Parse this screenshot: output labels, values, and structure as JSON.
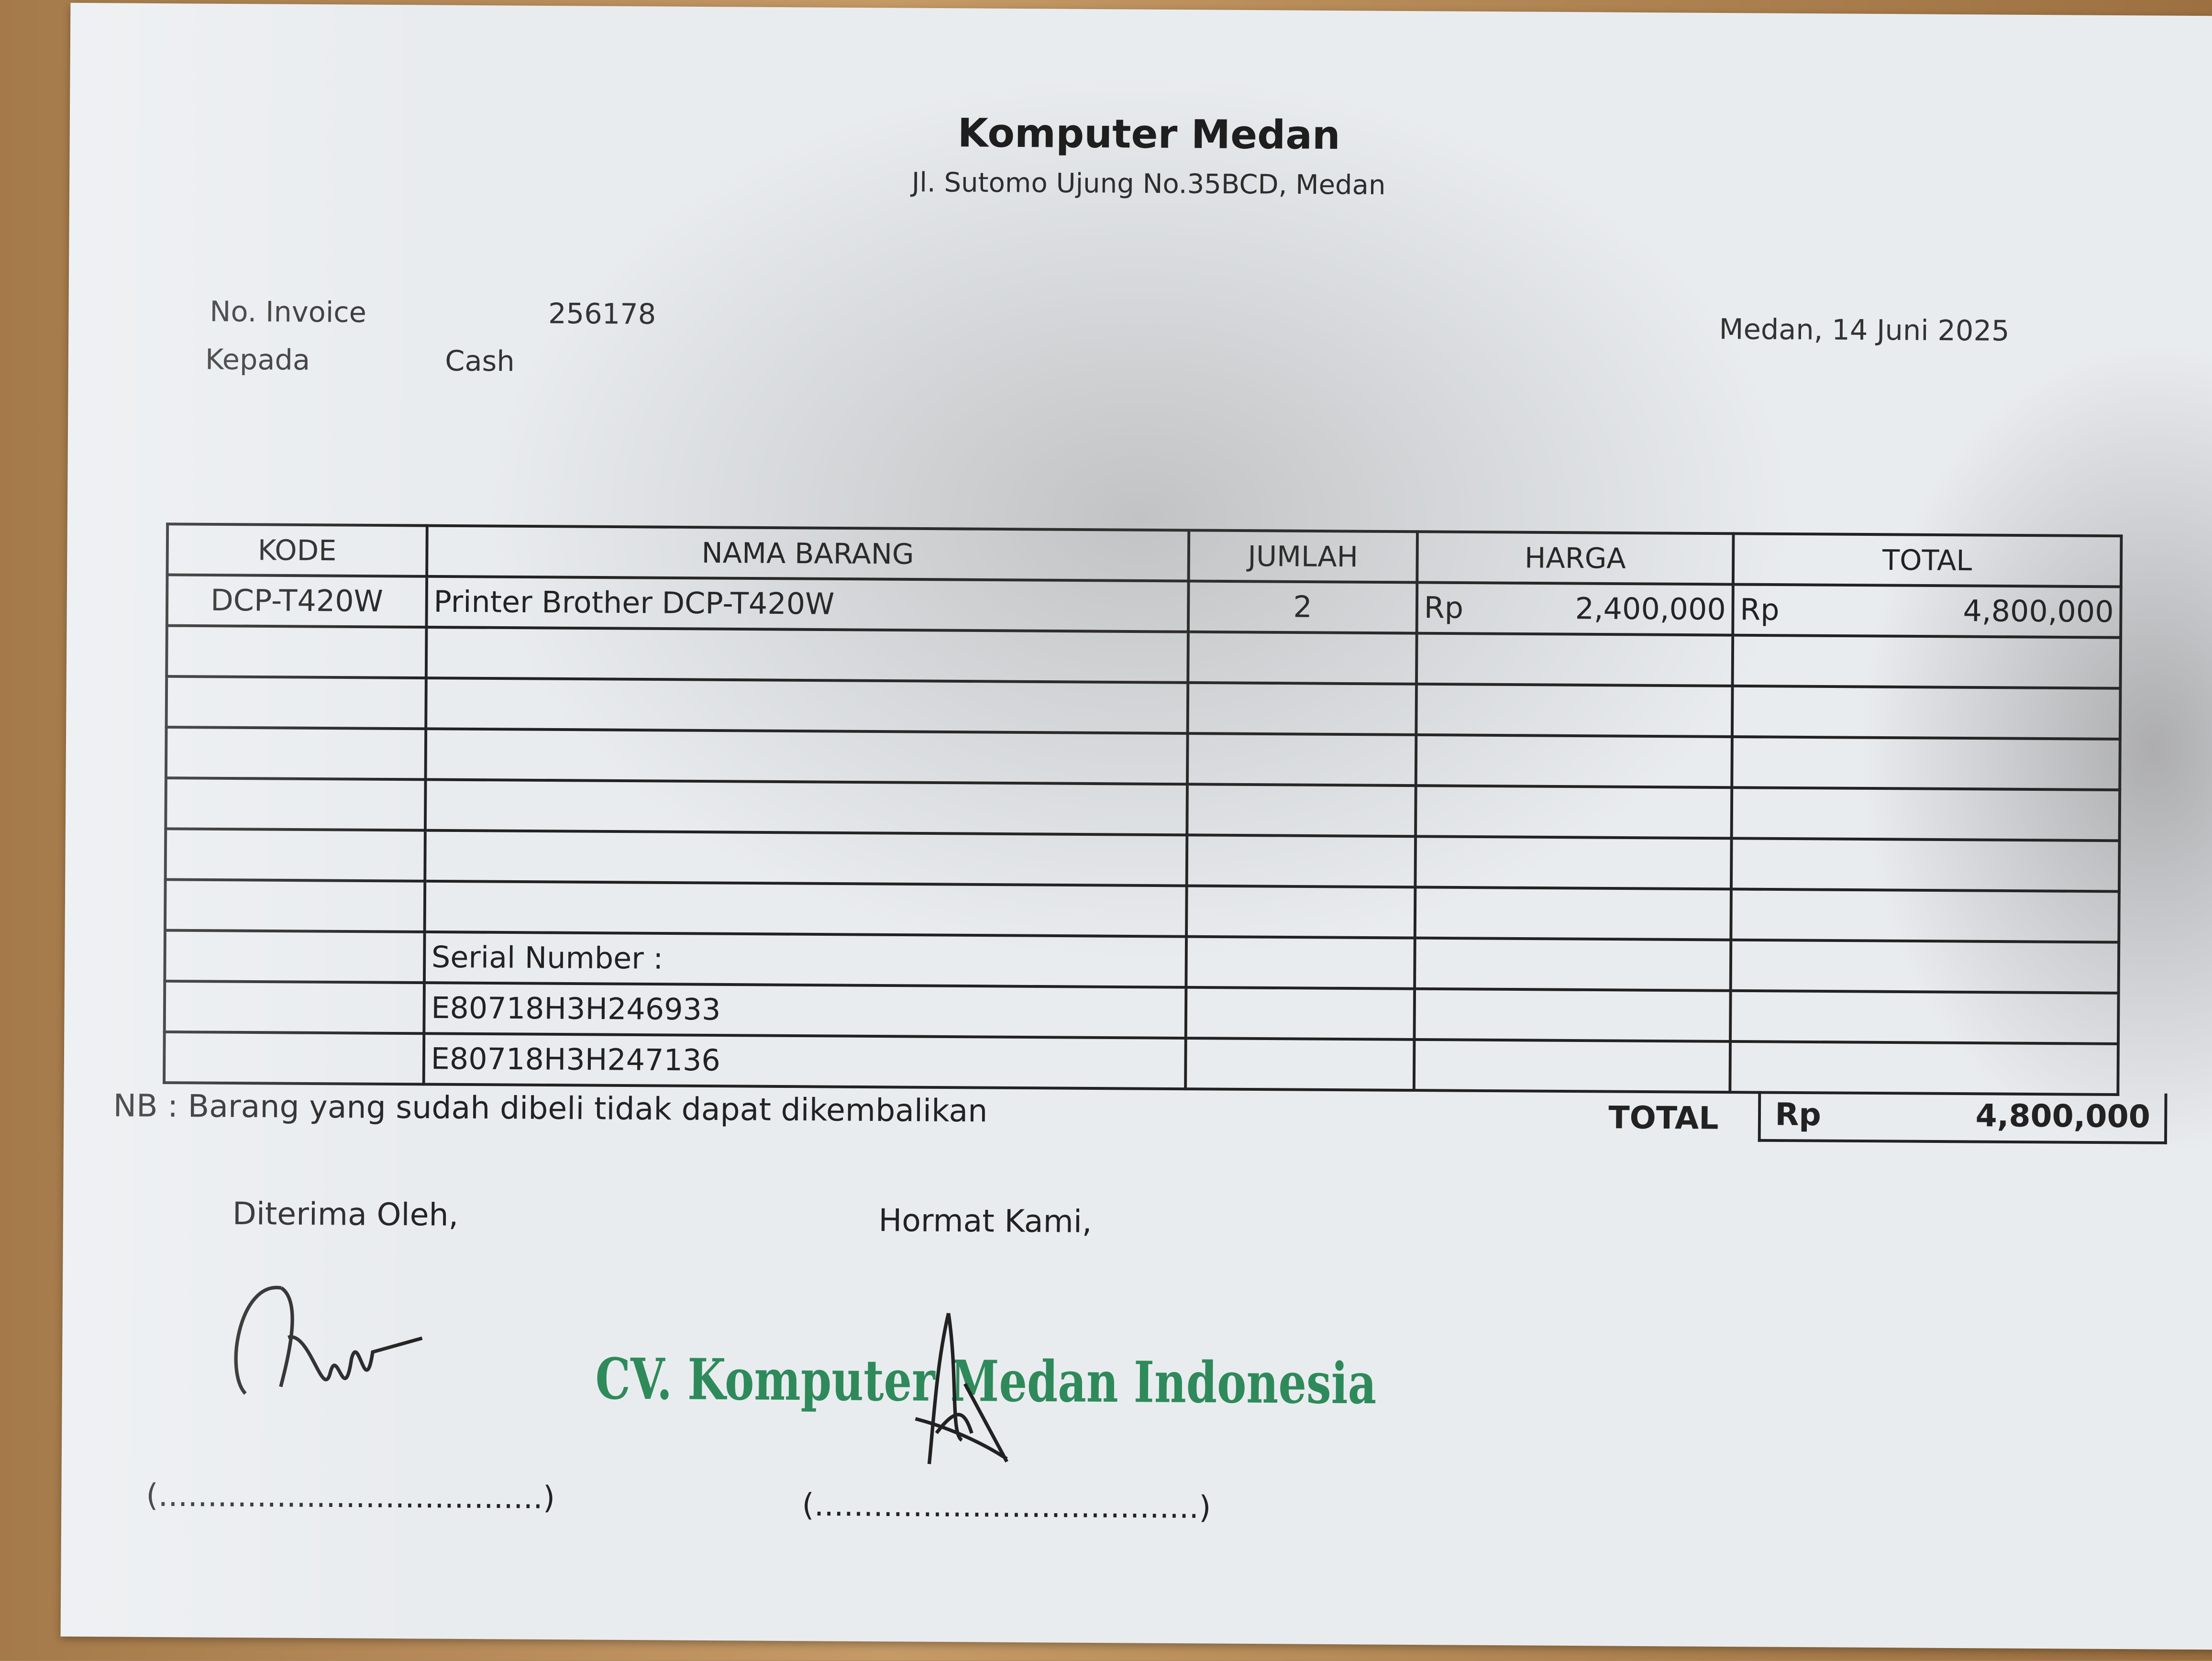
{
  "header": {
    "company": "Komputer Medan",
    "address": "Jl. Sutomo Ujung No.35BCD, Medan"
  },
  "meta": {
    "invoice_label": "No. Invoice",
    "invoice_no": "256178",
    "to_label": "Kepada",
    "to_value": "Cash",
    "place_date": "Medan, 14 Juni 2025"
  },
  "table": {
    "headers": [
      "KODE",
      "NAMA BARANG",
      "JUMLAH",
      "HARGA",
      "TOTAL"
    ],
    "item": {
      "kode": "DCP-T420W",
      "nama": "Printer Brother DCP-T420W",
      "jumlah": "2",
      "harga_cur": "Rp",
      "harga": "2,400,000",
      "total_cur": "Rp",
      "total": "4,800,000"
    },
    "serial_label": "Serial Number :",
    "serials": [
      "E80718H3H246933",
      "E80718H3H247136"
    ]
  },
  "footer": {
    "note": "NB : Barang yang sudah dibeli tidak dapat dikembalikan",
    "total_label": "TOTAL",
    "total_cur": "Rp",
    "total_value": "4,800,000"
  },
  "signatures": {
    "received_by": "Diterima Oleh,",
    "regards": "Hormat Kami,",
    "blank": "(.......................................)",
    "stamp": "CV. Komputer Medan Indonesia"
  },
  "colors": {
    "stamp": "#2e8a5a",
    "paper": "#e9ecef"
  }
}
